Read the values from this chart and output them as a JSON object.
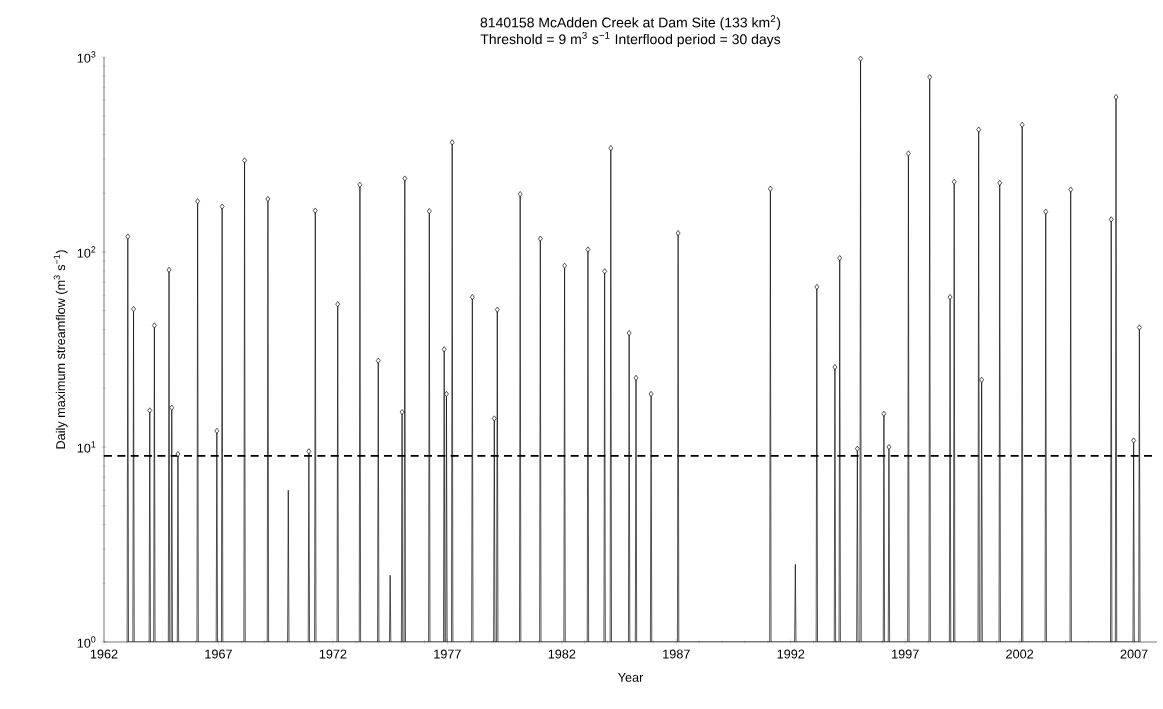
{
  "chart_data": {
    "type": "line",
    "title": "8140158 McAdden Creek at Dam Site (133 km$^{2}$)",
    "subtitle": "Threshold = 9 m$^{3}$ s$^{−1}$ Interflood period = 30 days",
    "xlabel": "Year",
    "ylabel": "Daily maximum streamflow (m$^{3}$ s$^{−1}$)",
    "log": "y",
    "xlim": [
      1962,
      2008
    ],
    "ylim": [
      1,
      1000
    ],
    "xticks": [
      1962,
      1967,
      1972,
      1977,
      1982,
      1987,
      1992,
      1997,
      2002,
      2007
    ],
    "yticks": [
      {
        "value": 1,
        "label": "10$^{0}$"
      },
      {
        "value": 10,
        "label": "10$^{1}$"
      },
      {
        "value": 100,
        "label": "10$^{2}$"
      },
      {
        "value": 1000,
        "label": "10$^{3}$"
      }
    ],
    "ref_lines": [
      {
        "axis": "y",
        "value": 9,
        "color": "#000000",
        "line_style": "dashed"
      }
    ],
    "series": [
      {
        "color": "#000000",
        "line_style": "solid",
        "x": [
          1963.01,
          1963.04,
          1963.07,
          1963.26,
          1963.29,
          1963.32,
          1963.97,
          1964.0,
          1964.03,
          1964.17,
          1964.2,
          1964.23,
          1964.81,
          1964.84,
          1964.87,
          1964.93,
          1964.96,
          1964.99,
          1965.2,
          1965.23,
          1965.26,
          1966.06,
          1966.09,
          1966.12,
          1966.9,
          1966.93,
          1966.96,
          1967.13,
          1967.16,
          1967.19,
          1968.11,
          1968.14,
          1968.17,
          1969.13,
          1969.16,
          1969.19,
          1970.02,
          1970.05,
          1970.08,
          1970.92,
          1970.95,
          1970.98,
          1971.2,
          1971.23,
          1971.26,
          1972.18,
          1972.21,
          1972.24,
          1973.15,
          1973.18,
          1973.21,
          1973.95,
          1973.98,
          1974.01,
          1974.47,
          1974.5,
          1974.53,
          1974.99,
          1975.02,
          1975.05,
          1975.11,
          1975.14,
          1975.17,
          1976.18,
          1976.21,
          1976.24,
          1976.83,
          1976.86,
          1976.89,
          1976.93,
          1976.96,
          1976.99,
          1977.18,
          1977.21,
          1977.24,
          1978.06,
          1978.09,
          1978.12,
          1979.02,
          1979.05,
          1979.08,
          1979.15,
          1979.18,
          1979.21,
          1980.15,
          1980.18,
          1980.21,
          1981.03,
          1981.06,
          1981.09,
          1982.09,
          1982.12,
          1982.15,
          1983.11,
          1983.14,
          1983.17,
          1983.84,
          1983.87,
          1983.9,
          1984.11,
          1984.14,
          1984.17,
          1984.91,
          1984.94,
          1984.97,
          1985.21,
          1985.24,
          1985.27,
          1985.87,
          1985.9,
          1985.93,
          1987.05,
          1987.08,
          1987.11,
          1991.08,
          1991.11,
          1991.14,
          1992.17,
          1992.2,
          1992.23,
          1993.11,
          1993.14,
          1993.17,
          1993.9,
          1993.93,
          1993.96,
          1994.11,
          1994.14,
          1994.17,
          1994.88,
          1994.91,
          1994.94,
          1995.02,
          1995.05,
          1995.08,
          1996.04,
          1996.07,
          1996.1,
          1996.26,
          1996.29,
          1996.32,
          1997.11,
          1997.14,
          1997.17,
          1998.04,
          1998.07,
          1998.1,
          1998.93,
          1998.96,
          1998.99,
          1999.11,
          1999.14,
          1999.17,
          2000.18,
          2000.21,
          2000.24,
          2000.31,
          2000.34,
          2000.37,
          2001.1,
          2001.13,
          2001.16,
          2002.08,
          2002.11,
          2002.14,
          2003.11,
          2003.14,
          2003.17,
          2004.2,
          2004.23,
          2004.26,
          2005.97,
          2006.0,
          2006.03,
          2006.18,
          2006.21,
          2006.24,
          2006.95,
          2006.98,
          2007.01,
          2007.2,
          2007.23,
          2007.26
        ],
        "values": [
          1,
          120,
          1,
          1,
          51,
          1,
          1,
          15.4,
          1,
          1,
          42,
          1,
          1,
          81,
          1,
          1,
          15.9,
          1,
          1,
          9.2,
          1,
          1,
          182,
          1,
          1,
          12.1,
          1,
          1,
          171,
          1,
          1,
          295,
          1,
          1,
          187,
          1,
          1,
          6,
          1,
          1,
          9.5,
          1,
          1,
          163,
          1,
          1,
          54,
          1,
          1,
          221,
          1,
          1,
          27.7,
          1,
          1,
          2.2,
          1,
          1,
          15.1,
          1,
          1,
          238,
          1,
          1,
          162,
          1,
          1,
          31.7,
          1,
          1,
          18.7,
          1,
          1,
          365,
          1,
          1,
          58.7,
          1,
          1,
          14,
          1,
          1,
          50.6,
          1,
          1,
          198,
          1,
          1,
          117,
          1,
          1,
          85,
          1,
          1,
          103,
          1,
          1,
          79.6,
          1,
          1,
          341,
          1,
          1,
          38.4,
          1,
          1,
          22.6,
          1,
          1,
          18.7,
          1,
          1,
          125,
          1,
          1,
          211,
          1,
          1,
          2.5,
          1,
          1,
          66.2,
          1,
          1,
          25.7,
          1,
          1,
          93,
          1,
          1,
          9.8,
          1,
          1,
          980,
          1,
          1,
          14.8,
          1,
          1,
          10,
          1,
          1,
          320,
          1,
          1,
          789,
          1,
          1,
          58.7,
          1,
          1,
          229,
          1,
          1,
          424,
          1,
          1,
          22.1,
          1,
          1,
          226,
          1,
          1,
          449,
          1,
          1,
          161,
          1,
          1,
          209,
          1,
          1,
          147,
          1,
          1,
          623,
          1,
          1,
          10.8,
          1,
          1,
          41,
          1
        ]
      },
      {
        "type": "scatter",
        "color": "#000000",
        "marker": "diamond",
        "x": [
          1963.04,
          1963.29,
          1964.0,
          1964.2,
          1964.84,
          1964.96,
          1965.23,
          1966.09,
          1966.93,
          1967.16,
          1968.14,
          1969.16,
          1970.95,
          1971.23,
          1972.21,
          1973.18,
          1973.98,
          1975.02,
          1975.14,
          1976.21,
          1976.86,
          1976.96,
          1977.21,
          1978.09,
          1979.05,
          1979.18,
          1980.18,
          1981.06,
          1982.12,
          1983.14,
          1983.87,
          1984.14,
          1984.94,
          1985.24,
          1985.9,
          1987.08,
          1991.11,
          1993.14,
          1993.93,
          1994.14,
          1994.91,
          1995.05,
          1996.07,
          1996.29,
          1997.14,
          1998.07,
          1998.96,
          1999.14,
          2000.21,
          2000.34,
          2001.13,
          2002.11,
          2003.14,
          2004.23,
          2006.0,
          2006.21,
          2006.98,
          2007.23
        ],
        "values": [
          120,
          51,
          15.4,
          42,
          81,
          15.9,
          9.2,
          182,
          12.1,
          171,
          295,
          187,
          9.5,
          163,
          54,
          221,
          27.7,
          15.1,
          238,
          162,
          31.7,
          18.7,
          365,
          58.7,
          14,
          50.6,
          198,
          117,
          85,
          103,
          79.6,
          341,
          38.4,
          22.6,
          18.7,
          125,
          211,
          66.2,
          25.7,
          93,
          9.8,
          980,
          14.8,
          10,
          320,
          789,
          58.7,
          229,
          424,
          22.1,
          226,
          449,
          161,
          209,
          147,
          623,
          10.8,
          41
        ]
      }
    ]
  }
}
